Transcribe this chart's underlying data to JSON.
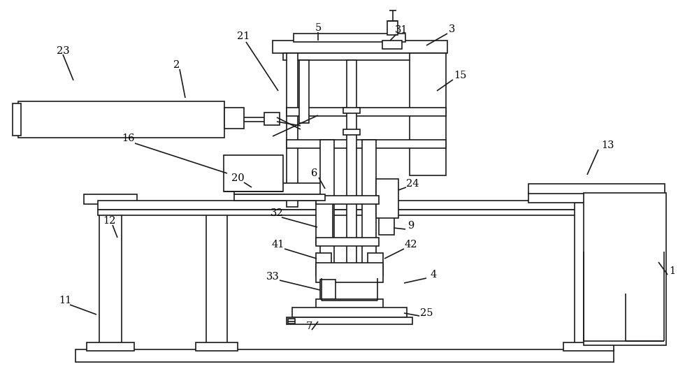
{
  "bg": "#ffffff",
  "lc": "#1a1a1a",
  "lw": 1.2,
  "fw": 10.0,
  "fh": 5.38
}
